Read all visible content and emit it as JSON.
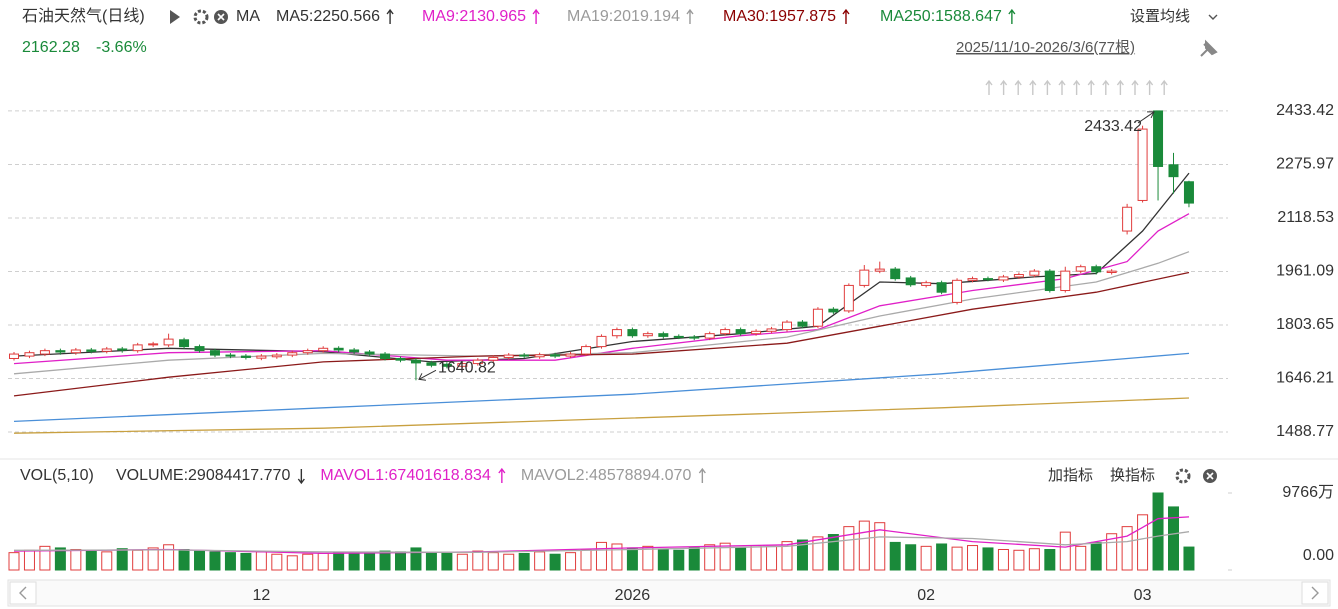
{
  "header": {
    "title": "石油天然气(日线)",
    "ma_label": "MA",
    "ma_values": [
      {
        "text": "MA5:2250.566",
        "color": "#333333"
      },
      {
        "text": "MA9:2130.965",
        "color": "#e020c8"
      },
      {
        "text": "MA19:2019.194",
        "color": "#9a9a9a"
      },
      {
        "text": "MA30:1957.875",
        "color": "#8b0000"
      },
      {
        "text": "MA250:1588.647",
        "color": "#1a8a3a"
      }
    ],
    "price": "2162.28",
    "change": "-3.66%",
    "settings": "设置均线",
    "range": "2025/11/10-2026/3/6(77根)"
  },
  "volume_header": {
    "name": "VOL(5,10)",
    "items": [
      {
        "text": "VOLUME:29084417.770",
        "color": "#333333"
      },
      {
        "text": "MAVOL1:67401618.834",
        "color": "#e020c8"
      },
      {
        "text": "MAVOL2:48578894.070",
        "color": "#9a9a9a"
      }
    ],
    "add": "加指标",
    "switch": "换指标"
  },
  "chart_data": [
    {
      "type": "candlestick",
      "categories": [
        null,
        null,
        null,
        null,
        null,
        null,
        null,
        null,
        null,
        null,
        null,
        null,
        null,
        null,
        null,
        null,
        "12",
        null,
        null,
        null,
        null,
        null,
        null,
        null,
        null,
        null,
        null,
        null,
        null,
        null,
        null,
        null,
        null,
        null,
        null,
        null,
        null,
        null,
        null,
        null,
        "2026",
        null,
        null,
        null,
        null,
        null,
        null,
        null,
        null,
        null,
        null,
        null,
        null,
        null,
        null,
        null,
        null,
        null,
        null,
        "02",
        null,
        null,
        null,
        null,
        null,
        null,
        null,
        null,
        null,
        null,
        null,
        null,
        null,
        "03",
        null,
        null,
        null
      ],
      "open": [
        1705,
        1712,
        1718,
        1728,
        1722,
        1730,
        1726,
        1733,
        1728,
        1745,
        1745,
        1760,
        1740,
        1728,
        1715,
        1712,
        1706,
        1710,
        1715,
        1722,
        1728,
        1735,
        1730,
        1724,
        1718,
        1705,
        1700,
        1692,
        1688,
        1682,
        1690,
        1700,
        1708,
        1715,
        1710,
        1716,
        1712,
        1718,
        1740,
        1772,
        1790,
        1772,
        1778,
        1770,
        1768,
        1765,
        1778,
        1790,
        1778,
        1785,
        1790,
        1812,
        1800,
        1850,
        1845,
        1920,
        1962,
        1968,
        1942,
        1920,
        1928,
        1870,
        1935,
        1940,
        1936,
        1945,
        1950,
        1962,
        1905,
        1962,
        1975,
        1958,
        2080,
        2170,
        2433.42,
        2275,
        2225
      ],
      "high": [
        1724,
        1728,
        1734,
        1734,
        1736,
        1736,
        1739,
        1739,
        1751,
        1754,
        1778,
        1766,
        1746,
        1734,
        1721,
        1718,
        1718,
        1721,
        1728,
        1734,
        1741,
        1741,
        1736,
        1730,
        1724,
        1711,
        1706,
        1698,
        1694,
        1696,
        1706,
        1714,
        1721,
        1721,
        1722,
        1722,
        1724,
        1746,
        1776,
        1796,
        1796,
        1784,
        1784,
        1776,
        1774,
        1784,
        1796,
        1796,
        1791,
        1798,
        1818,
        1818,
        1856,
        1856,
        1926,
        1980,
        1990,
        1974,
        1948,
        1934,
        1934,
        1941,
        1946,
        1946,
        1951,
        1958,
        1968,
        1968,
        1975,
        1981,
        1981,
        1968,
        2160,
        2390,
        2433.42,
        2310,
        2228
      ],
      "low": [
        1699,
        1706,
        1712,
        1716,
        1716,
        1720,
        1720,
        1722,
        1722,
        1739,
        1739,
        1734,
        1722,
        1709,
        1706,
        1702,
        1700,
        1704,
        1709,
        1716,
        1722,
        1724,
        1718,
        1712,
        1699,
        1694,
        1640.82,
        1679,
        1676,
        1676,
        1684,
        1694,
        1702,
        1706,
        1704,
        1706,
        1706,
        1712,
        1734,
        1764,
        1766,
        1766,
        1764,
        1762,
        1759,
        1759,
        1772,
        1772,
        1772,
        1779,
        1784,
        1794,
        1794,
        1836,
        1839,
        1914,
        1956,
        1934,
        1916,
        1914,
        1894,
        1864,
        1929,
        1932,
        1930,
        1939,
        1944,
        1899,
        1899,
        1956,
        1952,
        1952,
        2070,
        2164,
        2170,
        2190,
        2150
      ],
      "close": [
        1718,
        1722,
        1728,
        1724,
        1730,
        1726,
        1733,
        1730,
        1745,
        1748,
        1762,
        1740,
        1728,
        1715,
        1712,
        1708,
        1712,
        1715,
        1722,
        1728,
        1735,
        1730,
        1724,
        1718,
        1705,
        1700,
        1692,
        1685,
        1682,
        1690,
        1700,
        1708,
        1715,
        1712,
        1716,
        1712,
        1718,
        1740,
        1770,
        1790,
        1772,
        1778,
        1770,
        1768,
        1765,
        1778,
        1790,
        1778,
        1785,
        1792,
        1812,
        1800,
        1850,
        1842,
        1920,
        1965,
        1968,
        1940,
        1922,
        1928,
        1900,
        1935,
        1940,
        1938,
        1945,
        1952,
        1962,
        1905,
        1962,
        1975,
        1960,
        1962,
        2150,
        2380,
        2270,
        2240,
        2162.28
      ],
      "up_color": "#e03c3c",
      "down_color": "#1a8a3a",
      "ylim": [
        1421,
        2495
      ],
      "yticks": [
        2433.42,
        2275.97,
        2118.53,
        1961.09,
        1803.65,
        1646.21,
        1488.77
      ],
      "grid": true,
      "series": [
        {
          "name": "MA5",
          "color": "#333333",
          "x": [
            0,
            10,
            20,
            27,
            33,
            40,
            47,
            52,
            56,
            60,
            66,
            70,
            73,
            76
          ],
          "values": [
            1712,
            1735,
            1725,
            1695,
            1705,
            1755,
            1778,
            1800,
            1930,
            1925,
            1945,
            1955,
            2080,
            2250.566
          ]
        },
        {
          "name": "MA9",
          "color": "#e020c8",
          "x": [
            0,
            10,
            20,
            28,
            35,
            40,
            47,
            52,
            56,
            62,
            68,
            72,
            74,
            76
          ],
          "values": [
            1690,
            1722,
            1728,
            1700,
            1700,
            1735,
            1772,
            1790,
            1860,
            1905,
            1940,
            1990,
            2080,
            2130.965
          ]
        },
        {
          "name": "MA19",
          "color": "#aaaaaa",
          "x": [
            0,
            10,
            20,
            30,
            40,
            50,
            56,
            62,
            70,
            74,
            76
          ],
          "values": [
            1660,
            1700,
            1720,
            1712,
            1722,
            1768,
            1830,
            1880,
            1930,
            1985,
            2019.194
          ]
        },
        {
          "name": "MA30",
          "color": "#8b1a1a",
          "x": [
            0,
            10,
            20,
            30,
            40,
            50,
            56,
            62,
            70,
            76
          ],
          "values": [
            1595,
            1650,
            1695,
            1712,
            1718,
            1750,
            1800,
            1850,
            1900,
            1957.875
          ]
        },
        {
          "color": "#4a8fd8",
          "x": [
            0,
            20,
            40,
            60,
            76
          ],
          "values": [
            1520,
            1560,
            1600,
            1660,
            1720
          ]
        },
        {
          "name": "MA250",
          "color": "#c8a040",
          "x": [
            0,
            20,
            40,
            60,
            76
          ],
          "values": [
            1485,
            1500,
            1530,
            1560,
            1588.647
          ]
        }
      ],
      "annotations": [
        "2433.42",
        "1640.82"
      ]
    },
    {
      "type": "bar",
      "values": [
        2200,
        2500,
        3000,
        2800,
        2600,
        2400,
        2300,
        2700,
        2500,
        2800,
        3200,
        2600,
        2400,
        2300,
        2200,
        2100,
        2300,
        2000,
        1800,
        2000,
        2100,
        2200,
        2100,
        2200,
        2400,
        2300,
        2800,
        2200,
        2100,
        2000,
        2400,
        2200,
        2000,
        2100,
        2300,
        2000,
        2200,
        2600,
        3500,
        3300,
        2800,
        3000,
        2600,
        2500,
        2900,
        3200,
        3400,
        2800,
        3100,
        3000,
        3600,
        3800,
        4200,
        4500,
        5500,
        6200,
        6000,
        3500,
        3200,
        3000,
        3300,
        2900,
        3100,
        2800,
        2600,
        2500,
        2700,
        2600,
        4800,
        3000,
        3500,
        4600,
        5500,
        7000,
        9766,
        8000,
        2908
      ],
      "ylim": [
        0,
        10780
      ],
      "yticks": [
        {
          "value": 9766,
          "label": "9766万"
        },
        {
          "value": 0,
          "label": "0.00"
        }
      ],
      "series": [
        {
          "name": "MAVOL1",
          "color": "#e020c8",
          "x": [
            0,
            10,
            20,
            30,
            40,
            50,
            56,
            62,
            68,
            72,
            74,
            76
          ],
          "values": [
            2400,
            2600,
            2100,
            2300,
            2800,
            3200,
            5100,
            3600,
            2900,
            4300,
            6500,
            6740
          ]
        },
        {
          "name": "MAVOL2",
          "color": "#aaaaaa",
          "x": [
            0,
            10,
            20,
            30,
            40,
            50,
            56,
            62,
            68,
            72,
            74,
            76
          ],
          "values": [
            2500,
            2550,
            2300,
            2250,
            2600,
            3000,
            4200,
            4000,
            3200,
            3600,
            4300,
            4858
          ]
        }
      ]
    }
  ]
}
